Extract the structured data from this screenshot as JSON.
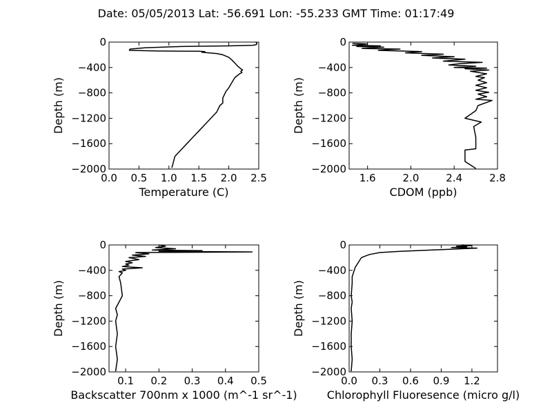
{
  "figure": {
    "title": "Date: 05/05/2013  Lat:  -56.691 Lon:  -55.233  GMT Time: 01:17:49"
  },
  "chart_data": [
    {
      "type": "line",
      "xlabel": "Temperature (C)",
      "ylabel": "Depth (m)",
      "xlim": [
        0.0,
        2.5
      ],
      "ylim": [
        -2000,
        0
      ],
      "xticks": [
        0.0,
        0.5,
        1.0,
        1.5,
        2.0,
        2.5
      ],
      "xtick_labels": [
        "0.0",
        "0.5",
        "1.0",
        "1.5",
        "2.0",
        "2.5"
      ],
      "yticks": [
        0,
        -400,
        -800,
        -1200,
        -1600,
        -2000
      ],
      "ytick_labels": [
        "0",
        "−400",
        "−800",
        "−1200",
        "−1600",
        "−2000"
      ],
      "series": [
        {
          "x": [
            2.45,
            2.47,
            2.46,
            2.4,
            2.0,
            1.2,
            0.6,
            0.35,
            0.34,
            0.8,
            1.5,
            1.6,
            1.55,
            1.8,
            1.9,
            2.0,
            2.05,
            2.1,
            2.15,
            2.2,
            2.23,
            2.2,
            2.22,
            2.18,
            2.1,
            2.05,
            2.0,
            1.95,
            1.9,
            1.9,
            1.85,
            1.8,
            1.7,
            1.6,
            1.5,
            1.4,
            1.3,
            1.2,
            1.1,
            1.05
          ],
          "y": [
            0,
            -20,
            -40,
            -50,
            -60,
            -70,
            -90,
            -110,
            -130,
            -140,
            -145,
            -150,
            -160,
            -180,
            -200,
            -240,
            -280,
            -330,
            -380,
            -420,
            -440,
            -460,
            -480,
            -500,
            -560,
            -640,
            -720,
            -780,
            -880,
            -960,
            -1000,
            -1100,
            -1200,
            -1300,
            -1400,
            -1500,
            -1600,
            -1700,
            -1800,
            -1980
          ]
        }
      ]
    },
    {
      "type": "line",
      "xlabel": "CDOM (ppb)",
      "ylabel": "Depth (m)",
      "xlim": [
        1.43,
        2.8
      ],
      "ylim": [
        -2000,
        0
      ],
      "xticks": [
        1.6,
        2.0,
        2.4,
        2.8
      ],
      "xtick_labels": [
        "1.6",
        "2.0",
        "2.4",
        "2.8"
      ],
      "yticks": [
        0,
        -400,
        -800,
        -1200,
        -1600,
        -2000
      ],
      "ytick_labels": [
        "0",
        "−400",
        "−800",
        "−1200",
        "−1600",
        "−2000"
      ],
      "series": [
        {
          "x": [
            1.46,
            1.6,
            1.46,
            1.72,
            1.5,
            1.75,
            1.55,
            1.9,
            1.7,
            2.1,
            1.95,
            2.3,
            2.1,
            2.4,
            2.2,
            2.5,
            2.3,
            2.66,
            2.45,
            2.35,
            2.6,
            2.4,
            2.7,
            2.5,
            2.72,
            2.55,
            2.7,
            2.6,
            2.68,
            2.62,
            2.7,
            2.6,
            2.7,
            2.6,
            2.72,
            2.62,
            2.7,
            2.6,
            2.75,
            2.62,
            2.6,
            2.5,
            2.65,
            2.58,
            2.6,
            2.6,
            2.5,
            2.5,
            2.6
          ],
          "y": [
            -20,
            -30,
            -50,
            -60,
            -70,
            -80,
            -100,
            -110,
            -130,
            -150,
            -170,
            -190,
            -210,
            -230,
            -250,
            -270,
            -300,
            -320,
            -340,
            -360,
            -380,
            -400,
            -410,
            -420,
            -440,
            -460,
            -500,
            -540,
            -560,
            -600,
            -640,
            -680,
            -720,
            -760,
            -790,
            -820,
            -860,
            -900,
            -920,
            -1000,
            -1080,
            -1200,
            -1260,
            -1330,
            -1500,
            -1680,
            -1700,
            -1880,
            -1990
          ]
        }
      ]
    },
    {
      "type": "line",
      "xlabel": "Backscatter 700nm x 1000 (m^-1 sr^-1)",
      "ylabel": "Depth (m)",
      "xlim": [
        0.05,
        0.5
      ],
      "ylim": [
        -2000,
        0
      ],
      "xticks": [
        0.1,
        0.2,
        0.3,
        0.4,
        0.5
      ],
      "xtick_labels": [
        "0.1",
        "0.2",
        "0.3",
        "0.4",
        "0.5"
      ],
      "yticks": [
        0,
        -400,
        -800,
        -1200,
        -1600,
        -2000
      ],
      "ytick_labels": [
        "0",
        "−400",
        "−800",
        "−1200",
        "−1600",
        "−2000"
      ],
      "series": [
        {
          "x": [
            0.2,
            0.22,
            0.19,
            0.25,
            0.18,
            0.33,
            0.2,
            0.48,
            0.13,
            0.17,
            0.12,
            0.16,
            0.11,
            0.14,
            0.1,
            0.12,
            0.1,
            0.11,
            0.09,
            0.15,
            0.09,
            0.1,
            0.08,
            0.09,
            0.08,
            0.085,
            0.09,
            0.08,
            0.07,
            0.075,
            0.07,
            0.075,
            0.07,
            0.075,
            0.07
          ],
          "y": [
            0,
            -20,
            -40,
            -60,
            -80,
            -90,
            -100,
            -110,
            -120,
            -140,
            -160,
            -180,
            -200,
            -230,
            -260,
            -280,
            -300,
            -320,
            -340,
            -360,
            -380,
            -400,
            -420,
            -440,
            -500,
            -600,
            -800,
            -900,
            -1000,
            -1100,
            -1200,
            -1400,
            -1600,
            -1800,
            -1990
          ]
        }
      ]
    },
    {
      "type": "line",
      "xlabel": "Chlorophyll Fluoresence (micro g/l)",
      "ylabel": "Depth (m)",
      "xlim": [
        0.0,
        1.45
      ],
      "ylim": [
        -2000,
        0
      ],
      "xticks": [
        0.0,
        0.3,
        0.6,
        0.9,
        1.2
      ],
      "xtick_labels": [
        "0.0",
        "0.3",
        "0.6",
        "0.9",
        "1.2"
      ],
      "yticks": [
        0,
        -400,
        -800,
        -1200,
        -1600,
        -2000
      ],
      "ytick_labels": [
        "0",
        "−400",
        "−800",
        "−1200",
        "−1600",
        "−2000"
      ],
      "series": [
        {
          "x": [
            1.1,
            1.2,
            1.05,
            1.15,
            1.0,
            1.25,
            1.1,
            0.8,
            0.5,
            0.3,
            0.2,
            0.15,
            0.12,
            0.1,
            0.08,
            0.06,
            0.05,
            0.04,
            0.03,
            0.03,
            0.02,
            0.03,
            0.02,
            0.03,
            0.02,
            0.02,
            0.03,
            0.02
          ],
          "y": [
            0,
            -10,
            -20,
            -30,
            -40,
            -50,
            -60,
            -80,
            -100,
            -120,
            -150,
            -180,
            -200,
            -250,
            -300,
            -350,
            -400,
            -450,
            -500,
            -600,
            -800,
            -900,
            -1000,
            -1200,
            -1400,
            -1600,
            -1800,
            -1990
          ]
        }
      ]
    }
  ]
}
